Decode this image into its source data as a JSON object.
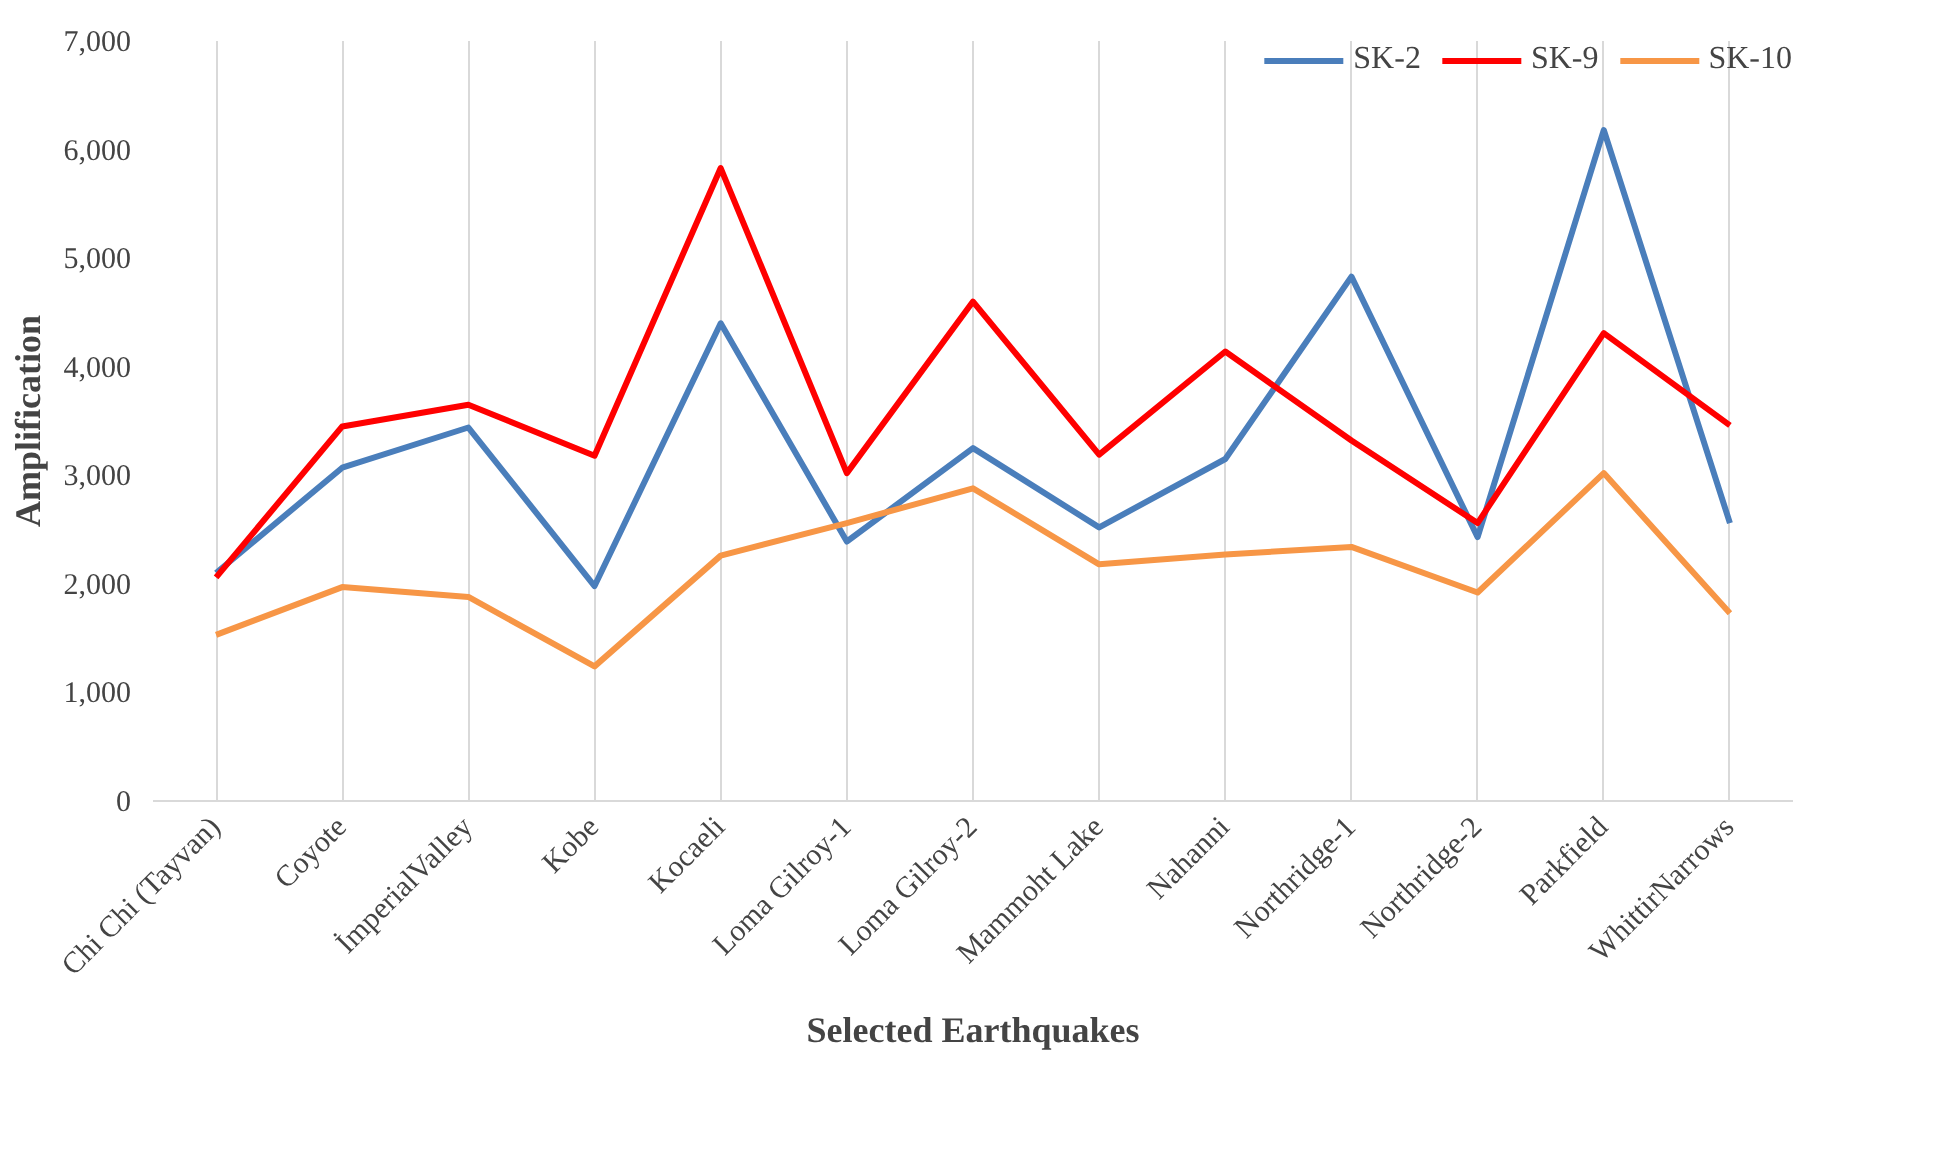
{
  "chart_data": {
    "type": "line",
    "xlabel": "Selected Earthquakes",
    "ylabel": "Amplification",
    "categories": [
      "Chi Chi (Tayvan)",
      "Coyote",
      "İmperialValley",
      "Kobe",
      "Kocaeli",
      "Loma Gilroy-1",
      "Loma Gilroy-2",
      "Mammoht Lake",
      "Nahanni",
      "Northridge-1",
      "Northridge-2",
      "Parkfield",
      "WhittirNarrows"
    ],
    "series": [
      {
        "name": "SK-2",
        "color": "#4a7ebb",
        "values": [
          2100,
          3070,
          3440,
          1980,
          4400,
          2390,
          3250,
          2520,
          3150,
          4830,
          2430,
          6180,
          2560
        ]
      },
      {
        "name": "SK-9",
        "color": "#ff0000",
        "values": [
          2060,
          3450,
          3650,
          3180,
          5830,
          3020,
          4600,
          3190,
          4140,
          3320,
          2560,
          4310,
          3460
        ]
      },
      {
        "name": "SK-10",
        "color": "#f79646",
        "values": [
          1530,
          1970,
          1880,
          1240,
          2260,
          2560,
          2880,
          2180,
          2270,
          2340,
          1920,
          3020,
          1730
        ]
      }
    ],
    "ylim": [
      0,
      7000
    ],
    "yticks": [
      {
        "value": 0,
        "label": "0"
      },
      {
        "value": 1000,
        "label": "1,000"
      },
      {
        "value": 2000,
        "label": "2,000"
      },
      {
        "value": 3000,
        "label": "3,000"
      },
      {
        "value": 4000,
        "label": "4,000"
      },
      {
        "value": 5000,
        "label": "5,000"
      },
      {
        "value": 6000,
        "label": "6,000"
      },
      {
        "value": 7000,
        "label": "7,000"
      }
    ],
    "grid": "x",
    "legend": "top right",
    "line_style": "solid",
    "marker": "none"
  }
}
